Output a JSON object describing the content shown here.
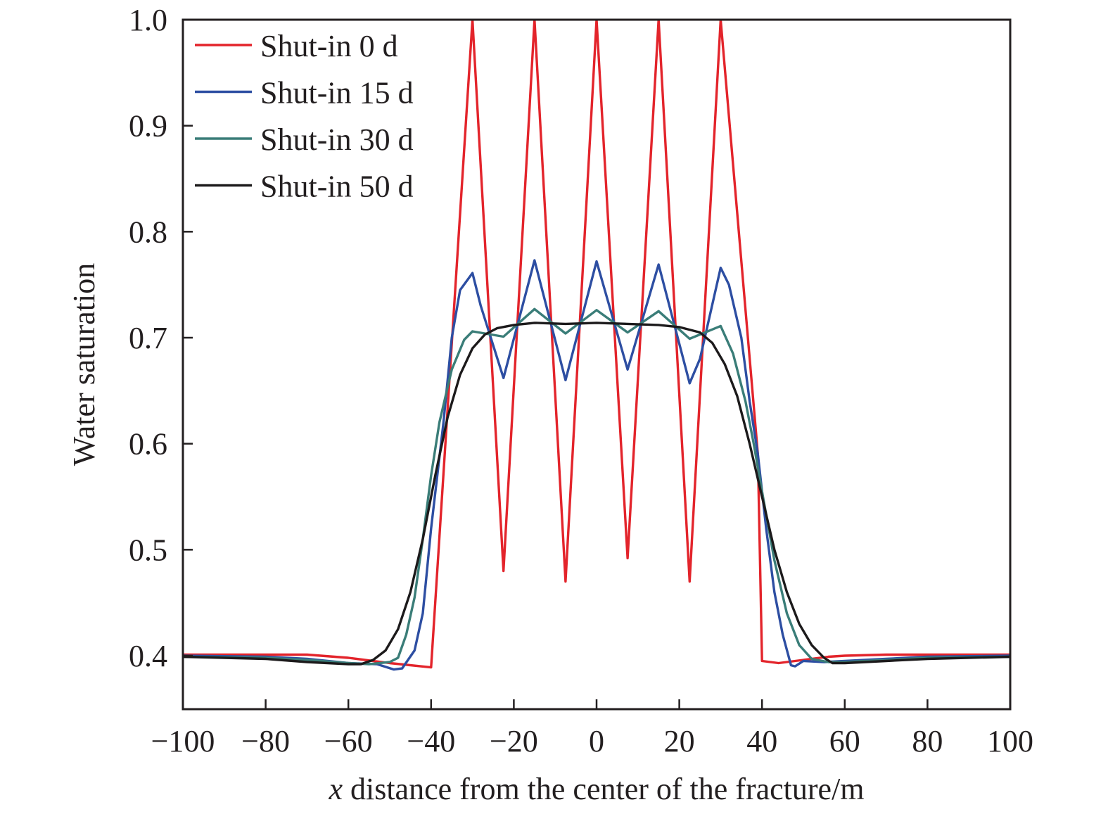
{
  "chart_data": {
    "type": "line",
    "title": "",
    "xlabel_italic": "x",
    "xlabel": " distance from the center of the fracture/m",
    "ylabel": "Water saturation",
    "xlim": [
      -100,
      100
    ],
    "ylim": [
      0.387,
      1.0
    ],
    "xticks": [
      -100,
      -80,
      -60,
      -40,
      -20,
      0,
      20,
      40,
      60,
      80,
      100
    ],
    "xtick_labels": [
      "−100",
      "−80",
      "−60",
      "−40",
      "−20",
      "0",
      "20",
      "40",
      "60",
      "80",
      "100"
    ],
    "yticks": [
      0.4,
      0.5,
      0.6,
      0.7,
      0.8,
      0.9,
      1.0
    ],
    "ytick_labels": [
      "0.4",
      "0.5",
      "0.6",
      "0.7",
      "0.8",
      "0.9",
      "1.0"
    ],
    "grid": false,
    "legend_position": "top-left",
    "series": [
      {
        "name": "Shut-in 0 d",
        "color": "#e3242b",
        "points": [
          [
            -100,
            0.401
          ],
          [
            -80,
            0.401
          ],
          [
            -70,
            0.401
          ],
          [
            -60,
            0.398
          ],
          [
            -50,
            0.393
          ],
          [
            -40,
            0.389
          ],
          [
            -30,
            1.0
          ],
          [
            -22.5,
            0.48
          ],
          [
            -15,
            1.0
          ],
          [
            -7.5,
            0.47
          ],
          [
            0,
            1.0
          ],
          [
            7.5,
            0.492
          ],
          [
            15,
            1.0
          ],
          [
            22.5,
            0.47
          ],
          [
            30,
            1.0
          ],
          [
            39,
            0.59
          ],
          [
            40,
            0.395
          ],
          [
            44,
            0.393
          ],
          [
            50,
            0.396
          ],
          [
            56,
            0.399
          ],
          [
            60,
            0.4
          ],
          [
            70,
            0.401
          ],
          [
            80,
            0.401
          ],
          [
            100,
            0.401
          ]
        ]
      },
      {
        "name": "Shut-in 15 d",
        "color": "#2d4ea2",
        "points": [
          [
            -100,
            0.4
          ],
          [
            -80,
            0.399
          ],
          [
            -70,
            0.397
          ],
          [
            -60,
            0.393
          ],
          [
            -53,
            0.392
          ],
          [
            -49,
            0.387
          ],
          [
            -47,
            0.388
          ],
          [
            -44,
            0.405
          ],
          [
            -42,
            0.44
          ],
          [
            -40,
            0.52
          ],
          [
            -37,
            0.62
          ],
          [
            -35,
            0.7
          ],
          [
            -33,
            0.745
          ],
          [
            -30,
            0.761
          ],
          [
            -28,
            0.73
          ],
          [
            -22.5,
            0.662
          ],
          [
            -15,
            0.773
          ],
          [
            -7.5,
            0.66
          ],
          [
            0,
            0.772
          ],
          [
            7.5,
            0.67
          ],
          [
            15,
            0.769
          ],
          [
            22.5,
            0.657
          ],
          [
            25,
            0.68
          ],
          [
            30,
            0.766
          ],
          [
            32,
            0.75
          ],
          [
            35,
            0.7
          ],
          [
            37,
            0.64
          ],
          [
            39,
            0.59
          ],
          [
            41,
            0.52
          ],
          [
            43,
            0.46
          ],
          [
            45,
            0.42
          ],
          [
            47,
            0.391
          ],
          [
            48,
            0.39
          ],
          [
            50,
            0.395
          ],
          [
            55,
            0.394
          ],
          [
            60,
            0.395
          ],
          [
            70,
            0.397
          ],
          [
            80,
            0.399
          ],
          [
            100,
            0.4
          ]
        ]
      },
      {
        "name": "Shut-in 30 d",
        "color": "#3a7d78",
        "points": [
          [
            -100,
            0.399
          ],
          [
            -80,
            0.398
          ],
          [
            -70,
            0.396
          ],
          [
            -60,
            0.393
          ],
          [
            -55,
            0.392
          ],
          [
            -50,
            0.394
          ],
          [
            -48,
            0.398
          ],
          [
            -46,
            0.42
          ],
          [
            -44,
            0.455
          ],
          [
            -42,
            0.51
          ],
          [
            -40,
            0.57
          ],
          [
            -38,
            0.62
          ],
          [
            -35,
            0.67
          ],
          [
            -32,
            0.698
          ],
          [
            -30,
            0.706
          ],
          [
            -22.5,
            0.701
          ],
          [
            -15,
            0.727
          ],
          [
            -7.5,
            0.704
          ],
          [
            0,
            0.726
          ],
          [
            7.5,
            0.705
          ],
          [
            15,
            0.725
          ],
          [
            22.5,
            0.699
          ],
          [
            30,
            0.711
          ],
          [
            33,
            0.685
          ],
          [
            36,
            0.64
          ],
          [
            38,
            0.6
          ],
          [
            40,
            0.555
          ],
          [
            43,
            0.49
          ],
          [
            46,
            0.44
          ],
          [
            49,
            0.41
          ],
          [
            52,
            0.397
          ],
          [
            56,
            0.394
          ],
          [
            60,
            0.394
          ],
          [
            70,
            0.396
          ],
          [
            80,
            0.398
          ],
          [
            100,
            0.399
          ]
        ]
      },
      {
        "name": "Shut-in 50 d",
        "color": "#1c1a1b",
        "points": [
          [
            -100,
            0.399
          ],
          [
            -80,
            0.397
          ],
          [
            -70,
            0.394
          ],
          [
            -60,
            0.392
          ],
          [
            -57,
            0.392
          ],
          [
            -54,
            0.396
          ],
          [
            -51,
            0.405
          ],
          [
            -48,
            0.425
          ],
          [
            -45,
            0.46
          ],
          [
            -42,
            0.51
          ],
          [
            -39,
            0.57
          ],
          [
            -36,
            0.625
          ],
          [
            -33,
            0.665
          ],
          [
            -30,
            0.69
          ],
          [
            -27,
            0.703
          ],
          [
            -24,
            0.709
          ],
          [
            -20,
            0.712
          ],
          [
            -15,
            0.714
          ],
          [
            -7.5,
            0.713
          ],
          [
            0,
            0.714
          ],
          [
            7.5,
            0.713
          ],
          [
            15,
            0.712
          ],
          [
            20,
            0.71
          ],
          [
            25,
            0.705
          ],
          [
            28,
            0.695
          ],
          [
            31,
            0.675
          ],
          [
            34,
            0.645
          ],
          [
            37,
            0.6
          ],
          [
            40,
            0.55
          ],
          [
            43,
            0.5
          ],
          [
            46,
            0.46
          ],
          [
            49,
            0.43
          ],
          [
            52,
            0.41
          ],
          [
            55,
            0.398
          ],
          [
            57,
            0.393
          ],
          [
            60,
            0.393
          ],
          [
            70,
            0.395
          ],
          [
            80,
            0.397
          ],
          [
            100,
            0.399
          ]
        ]
      }
    ]
  }
}
